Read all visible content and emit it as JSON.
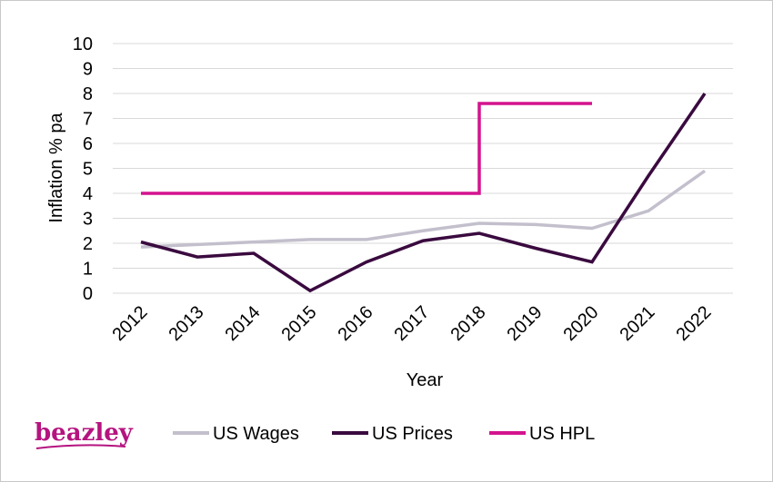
{
  "brand": {
    "logo_text": "beazley",
    "color": "#b5137f"
  },
  "chart_data": {
    "type": "line",
    "title": "",
    "xlabel": "Year",
    "ylabel": "Inflation % pa",
    "x": [
      "2012",
      "2013",
      "2014",
      "2015",
      "2016",
      "2017",
      "2018",
      "2019",
      "2020",
      "2021",
      "2022"
    ],
    "ylim": [
      0,
      10
    ],
    "yticks": [
      "0",
      "1",
      "2",
      "3",
      "4",
      "5",
      "6",
      "7",
      "8",
      "9",
      "10"
    ],
    "grid": true,
    "legend_position": "bottom",
    "series": [
      {
        "name": "US Wages",
        "color": "#c3bfcc",
        "type": "line",
        "values": [
          1.85,
          1.95,
          2.05,
          2.15,
          2.15,
          2.5,
          2.8,
          2.75,
          2.6,
          3.3,
          4.9
        ]
      },
      {
        "name": "US Prices",
        "color": "#3a0a3f",
        "type": "line",
        "values": [
          2.05,
          1.45,
          1.6,
          0.1,
          1.25,
          2.1,
          2.4,
          1.8,
          1.25,
          4.7,
          8.0
        ]
      },
      {
        "name": "US HPL",
        "color": "#d4148e",
        "type": "step",
        "values": [
          4.0,
          4.0,
          4.0,
          4.0,
          4.0,
          4.0,
          7.6,
          7.6,
          7.6,
          null,
          null
        ]
      }
    ]
  }
}
